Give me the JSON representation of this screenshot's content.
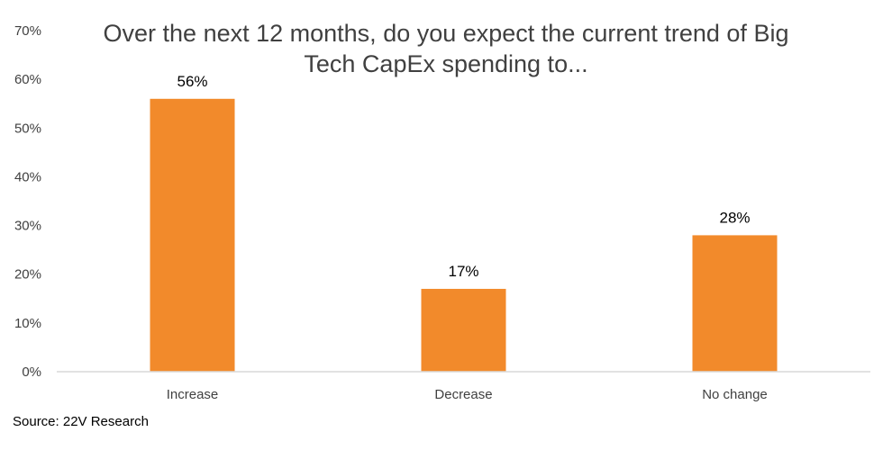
{
  "chart_data": {
    "type": "bar",
    "title": [
      "Over the next 12 months, do you expect the current trend of Big",
      "Tech CapEx spending to..."
    ],
    "categories": [
      "Increase",
      "Decrease",
      "No change"
    ],
    "values": [
      56,
      17,
      28
    ],
    "data_labels": [
      "56%",
      "17%",
      "28%"
    ],
    "ylim": [
      0,
      70
    ],
    "yticks": [
      0,
      10,
      20,
      30,
      40,
      50,
      60,
      70
    ],
    "ytick_labels": [
      "0%",
      "10%",
      "20%",
      "30%",
      "40%",
      "50%",
      "60%",
      "70%"
    ],
    "xlabel": "",
    "ylabel": "",
    "grid": false,
    "bar_color": "#F28A2B",
    "axis_color": "#D9D9D9"
  },
  "source": "Source: 22V Research"
}
